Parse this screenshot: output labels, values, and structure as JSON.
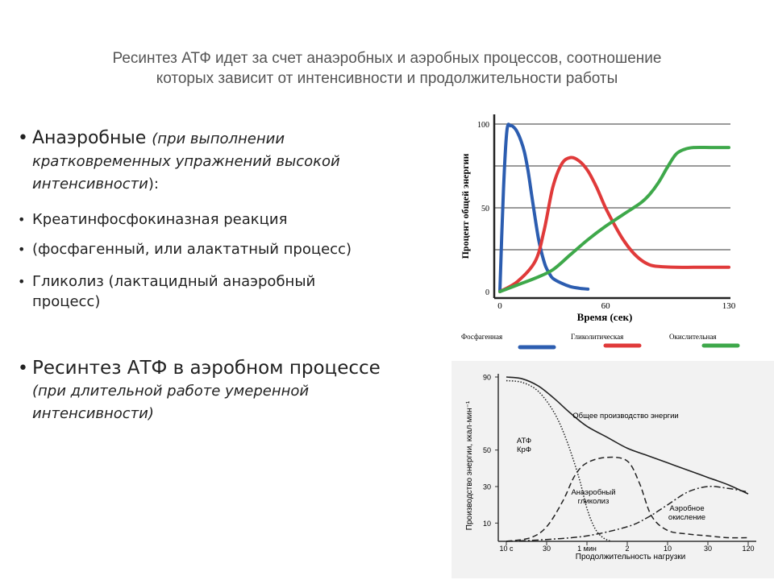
{
  "title": {
    "line1": "Ресинтез АТФ идет за счет анаэробных и аэробных процессов, соотношение",
    "line2": "которых зависит от интенсивности и продолжительности работы"
  },
  "bullets": {
    "b1": {
      "main": "Анаэробные",
      "l1": "(при выполнении",
      "l2": "кратковременных упражнений высокой",
      "l3": "интенсивности",
      "tail": "):"
    },
    "b2": "Креатинфосфокиназная реакция",
    "b3": "(фосфагенный, или алактатный процесс)",
    "b4": {
      "l1": "Гликолиз (лактацидный анаэробный",
      "l2": "процесс)"
    },
    "b5": {
      "main": "Ресинтез АТФ в аэробном процессе",
      "l1": "(при длительной работе умеренной",
      "l2": "интенсивности)"
    }
  },
  "chart_data": [
    {
      "type": "line",
      "ylabel": "Процент общей энергии",
      "xlabel": "Время (сек)",
      "xticks": [
        "0",
        "60",
        "130"
      ],
      "yticks": [
        "0",
        "50",
        "100"
      ],
      "xlim": [
        0,
        130
      ],
      "ylim": [
        0,
        100
      ],
      "grid": true,
      "legend_position": "bottom",
      "series": [
        {
          "name": "Фосфагенная",
          "color": "#2c5db0",
          "x": [
            0,
            2,
            4,
            6,
            8,
            10,
            12,
            14,
            16,
            18,
            20,
            22,
            24,
            26,
            28,
            30,
            35,
            40,
            45,
            50
          ],
          "y": [
            0,
            60,
            96,
            99,
            98,
            95,
            90,
            83,
            72,
            58,
            44,
            31,
            22,
            15,
            11,
            8,
            5,
            3,
            2,
            1.5
          ]
        },
        {
          "name": "Гликолитическая",
          "color": "#e03a3a",
          "x": [
            0,
            10,
            20,
            25,
            30,
            35,
            40,
            45,
            50,
            55,
            60,
            65,
            70,
            75,
            80,
            85,
            90,
            100,
            110,
            120,
            130
          ],
          "y": [
            0,
            6,
            18,
            36,
            62,
            76,
            80,
            78,
            72,
            62,
            50,
            40,
            31,
            24,
            19,
            16,
            15,
            14.5,
            14.5,
            14.5,
            14.5
          ]
        },
        {
          "name": "Окислительная",
          "color": "#3ea84a",
          "x": [
            0,
            10,
            20,
            30,
            40,
            50,
            60,
            70,
            80,
            85,
            90,
            95,
            100,
            105,
            110,
            120,
            130
          ],
          "y": [
            0,
            4,
            8,
            13,
            22,
            31,
            39,
            46,
            53,
            58,
            65,
            74,
            82,
            85,
            86,
            86,
            86
          ]
        }
      ]
    },
    {
      "type": "line",
      "ylabel": "Производство энергии, ккал·мин⁻¹",
      "xlabel": "Продолжительность нагрузки",
      "xticks": [
        "10 с",
        "30",
        "1 мин",
        "2",
        "10",
        "30",
        "120"
      ],
      "yticks": [
        "90",
        "50",
        "30",
        "10"
      ],
      "ylim": [
        0,
        90
      ],
      "annotations": [
        "Общее производство энергии",
        "АТФ",
        "КрФ",
        "Анаэробный",
        "гликолиз",
        "Аэробное",
        "окисление"
      ],
      "series": [
        {
          "name": "Общее производство энергии",
          "style": "solid",
          "x_index": [
            0,
            0.4,
            0.8,
            1.2,
            1.6,
            2.0,
            2.5,
            3.0,
            3.5,
            4.0,
            4.5,
            5.0,
            5.5,
            6.0
          ],
          "y": [
            90,
            89,
            85,
            78,
            70,
            63,
            57,
            51,
            47,
            43,
            39,
            35,
            31,
            26
          ]
        },
        {
          "name": "АТФ / КрФ",
          "style": "dotted",
          "x_index": [
            0,
            0.4,
            0.8,
            1.2,
            1.5,
            1.8,
            2.0,
            2.2,
            2.4,
            2.6
          ],
          "y": [
            88,
            87,
            82,
            70,
            55,
            35,
            18,
            7,
            2,
            0
          ]
        },
        {
          "name": "Анаэробный гликолиз",
          "style": "dashed",
          "x_index": [
            0,
            0.6,
            1.0,
            1.4,
            1.7,
            2.0,
            2.5,
            3.0,
            3.3,
            3.6,
            4.0,
            4.5,
            5.0,
            5.5,
            6.0
          ],
          "y": [
            0,
            2,
            8,
            22,
            36,
            43,
            46,
            44,
            32,
            14,
            6,
            4,
            3,
            2,
            2
          ]
        },
        {
          "name": "Аэробное окисление",
          "style": "dashdot",
          "x_index": [
            0,
            1.0,
            2.0,
            3.0,
            3.5,
            4.0,
            4.5,
            5.0,
            5.5,
            6.0
          ],
          "y": [
            0,
            1,
            3,
            8,
            13,
            20,
            27,
            30,
            29,
            27
          ]
        }
      ]
    }
  ]
}
